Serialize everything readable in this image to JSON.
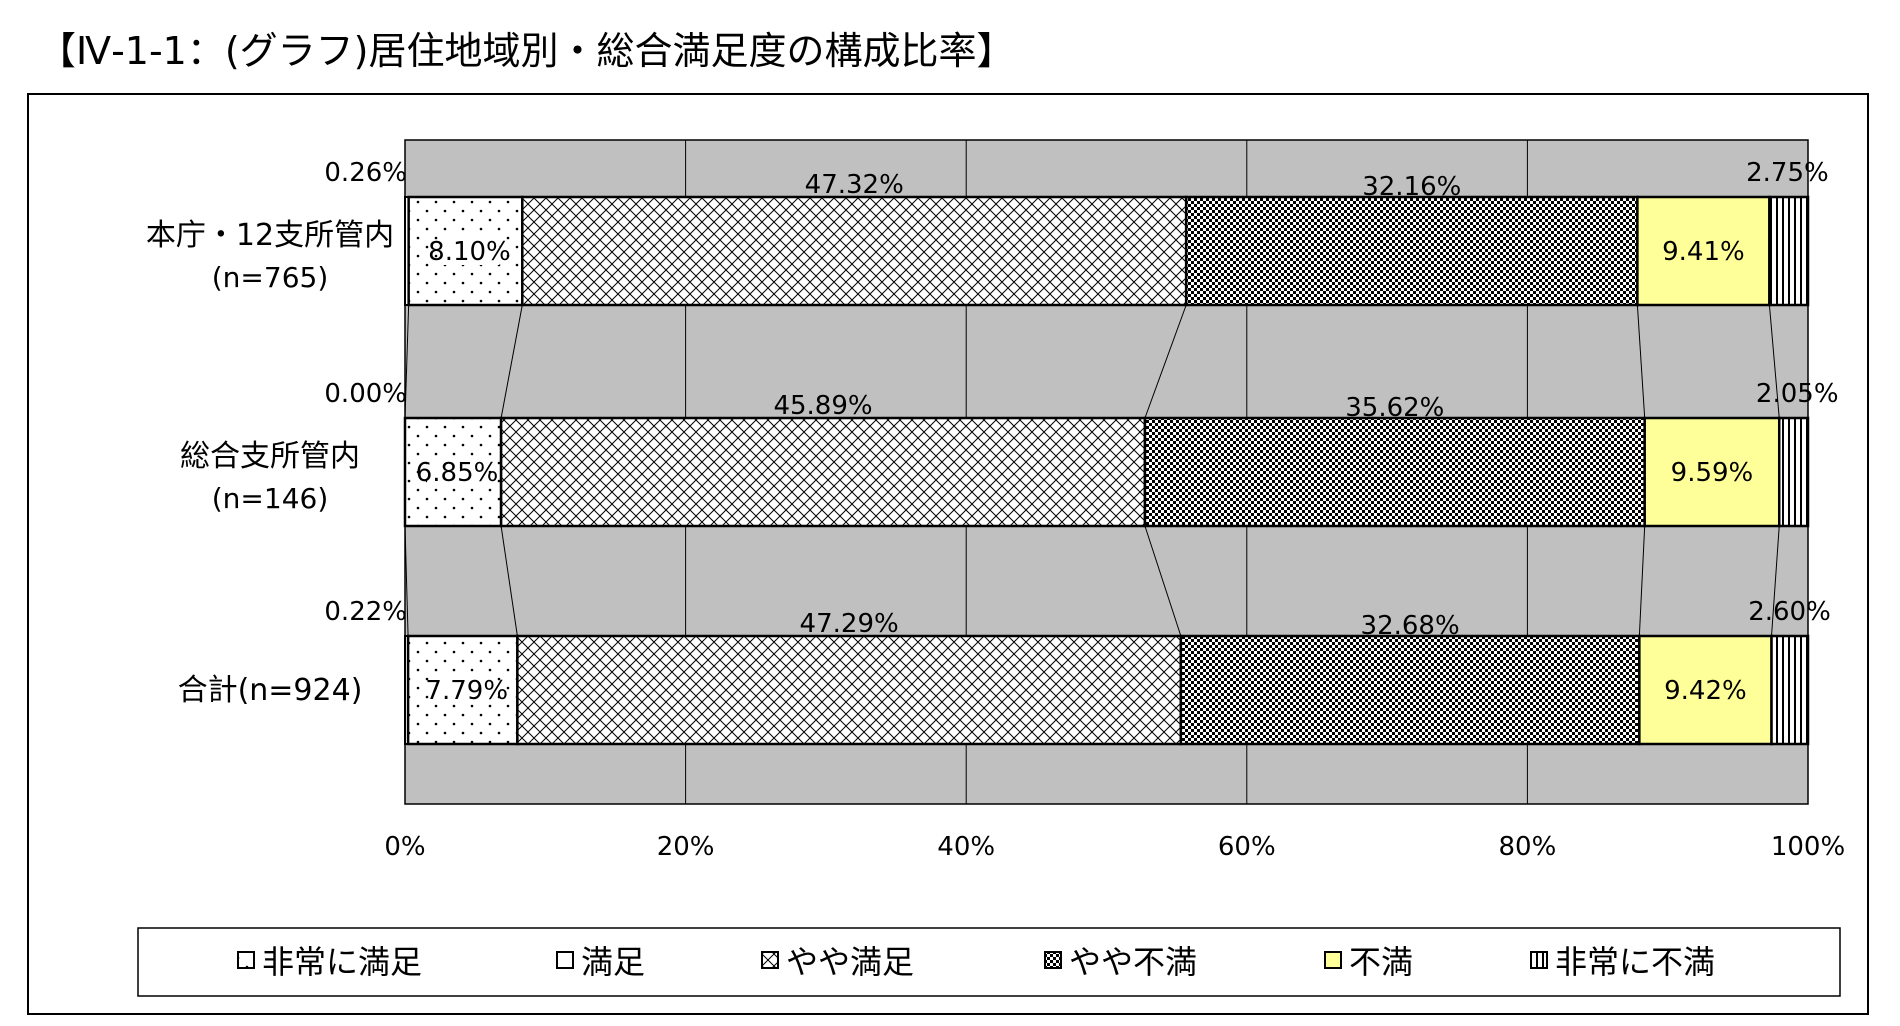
{
  "page_title": "【Ⅳ-1-1：(グラフ)居住地域別・総合満足度の構成比率】",
  "chart_data": {
    "type": "bar",
    "orientation": "horizontal",
    "stacked": true,
    "percent_stacked": true,
    "title": "",
    "xlabel": "",
    "ylabel": "",
    "xlim": [
      0,
      100
    ],
    "x_ticks": [
      "0%",
      "20%",
      "40%",
      "60%",
      "80%",
      "100%"
    ],
    "grid": true,
    "series_lines": true,
    "legend_position": "bottom",
    "categories": [
      {
        "label_line1": "本庁・12支所管内",
        "label_line2": "(n=765)"
      },
      {
        "label_line1": "総合支所管内",
        "label_line2": "(n=146)"
      },
      {
        "label_line1": "合計(n=924)",
        "label_line2": ""
      }
    ],
    "series": [
      {
        "name": "非常に満足",
        "pattern": "dots",
        "color": "#ffffff",
        "values": [
          8.1,
          6.85,
          7.79
        ],
        "labels": [
          "8.10%",
          "6.85%",
          "7.79%"
        ]
      },
      {
        "name": "満足",
        "pattern": "solid",
        "color": "#ffffff",
        "values": [
          47.32,
          45.89,
          47.29
        ],
        "labels": [
          "47.32%",
          "45.89%",
          "47.29%"
        ]
      },
      {
        "name": "やや満足",
        "pattern": "checker",
        "color": "#000000",
        "values": [
          32.16,
          35.62,
          32.68
        ],
        "labels": [
          "32.16%",
          "35.62%",
          "32.68%"
        ]
      },
      {
        "name": "やや不満",
        "pattern": "vstripes",
        "color": "#000000",
        "values": [
          2.75,
          2.05,
          2.6
        ],
        "labels": [
          "2.75%",
          "2.05%",
          "2.60%"
        ]
      },
      {
        "name": "不満",
        "pattern": "solid",
        "color": "#ffff99",
        "values": [
          9.41,
          9.59,
          9.42
        ],
        "labels": [
          "9.41%",
          "9.59%",
          "9.42%"
        ]
      },
      {
        "name": "非常に不満",
        "pattern": "solid",
        "color": "#ffffff",
        "values": [
          0.26,
          0.0,
          0.22
        ],
        "labels": [
          "0.26%",
          "0.00%",
          "0.22%"
        ]
      }
    ],
    "plot_background": "#c0c0c0"
  }
}
